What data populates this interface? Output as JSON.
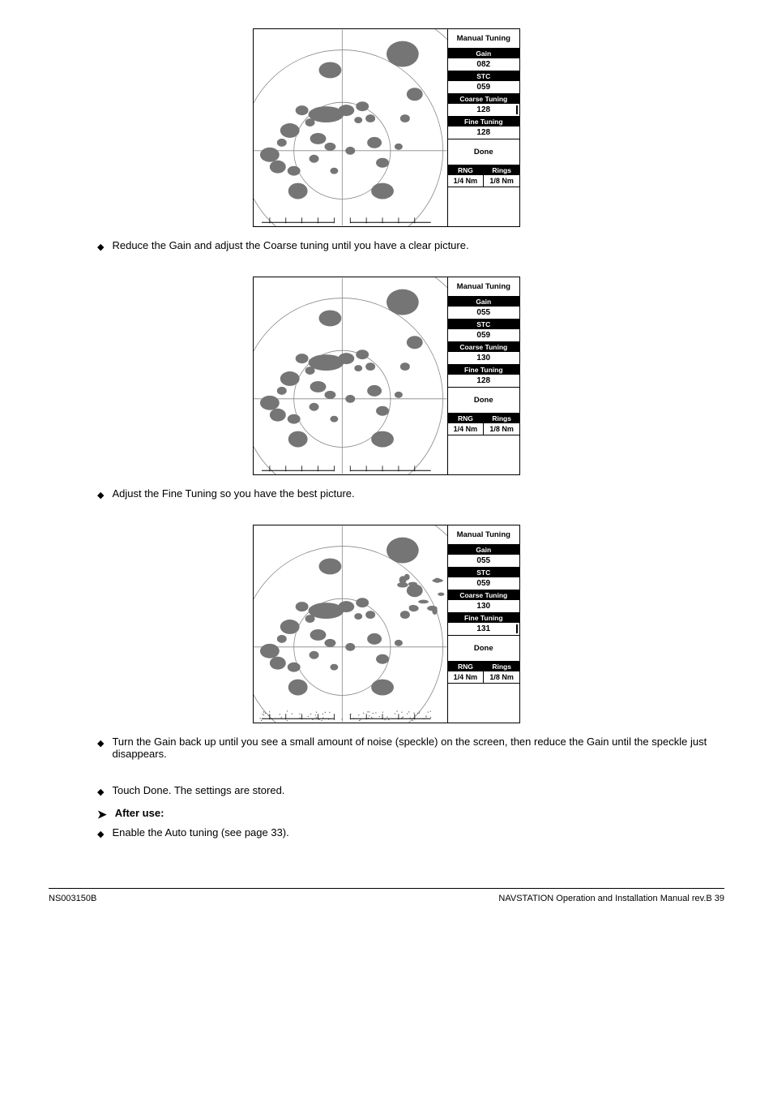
{
  "figures": [
    {
      "caption": "Reduce the Gain and adjust the Coarse tuning until you have a clear picture.",
      "panel": {
        "title": "Manual Tuning",
        "gain_label": "Gain",
        "gain_value": "082",
        "stc_label": "STC",
        "stc_value": "059",
        "coarse_label": "Coarse Tuning",
        "coarse_value": "128",
        "coarse_cursor": true,
        "fine_label": "Fine Tuning",
        "fine_value": "128",
        "fine_cursor": false,
        "done": "Done",
        "rng_label": "RNG",
        "rng_value": "1/4 Nm",
        "rings_label": "Rings",
        "rings_value": "1/8 Nm"
      },
      "speckle_level": "low"
    },
    {
      "caption": "Adjust the Fine Tuning so you have the best picture.",
      "panel": {
        "title": "Manual Tuning",
        "gain_label": "Gain",
        "gain_value": "055",
        "stc_label": "STC",
        "stc_value": "059",
        "coarse_label": "Coarse Tuning",
        "coarse_value": "130",
        "coarse_cursor": false,
        "fine_label": "Fine Tuning",
        "fine_value": "128",
        "fine_cursor": false,
        "done": "Done",
        "rng_label": "RNG",
        "rng_value": "1/4 Nm",
        "rings_label": "Rings",
        "rings_value": "1/8 Nm"
      },
      "speckle_level": "low"
    },
    {
      "caption": "Turn the Gain back up until you see a small amount of noise (speckle) on the screen, then reduce the Gain until the speckle just disappears.",
      "panel": {
        "title": "Manual Tuning",
        "gain_label": "Gain",
        "gain_value": "055",
        "stc_label": "STC",
        "stc_value": "059",
        "coarse_label": "Coarse Tuning",
        "coarse_value": "130",
        "coarse_cursor": false,
        "fine_label": "Fine Tuning",
        "fine_value": "131",
        "fine_cursor": true,
        "done": "Done",
        "rng_label": "RNG",
        "rng_value": "1/4 Nm",
        "rings_label": "Rings",
        "rings_value": "1/8 Nm"
      },
      "speckle_level": "high"
    }
  ],
  "end_caption": "Touch Done. The settings are stored.",
  "note_heading": "After use:",
  "note_text": "Enable the Auto tuning (see page 33).",
  "footer_left": "NS003150B",
  "footer_right": "NAVSTATION Operation and Installation Manual rev.B 39",
  "colors": {
    "ink": "#000000",
    "gray_fill": "#777777",
    "light_gray": "#b0b0b0",
    "bg": "#ffffff"
  }
}
